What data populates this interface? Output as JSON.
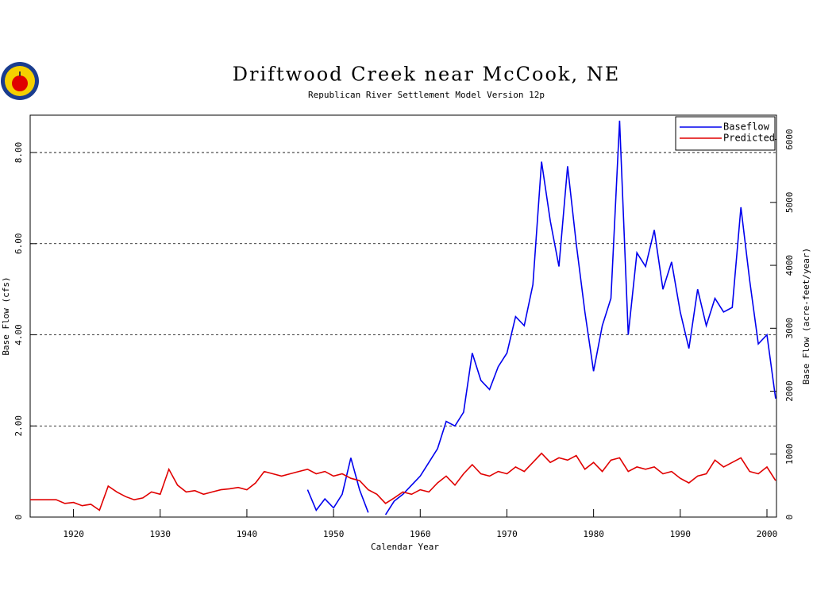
{
  "chart_data": {
    "type": "line",
    "title": "Driftwood Creek near McCook, NE",
    "subtitle": "Republican River Settlement Model Version 12p",
    "x_label": "Calendar Year",
    "y_label": "Base Flow (cfs)",
    "y2_label": "Base Flow (acre-feet/year)",
    "x": [
      1915,
      1916,
      1917,
      1918,
      1919,
      1920,
      1921,
      1922,
      1923,
      1924,
      1925,
      1926,
      1927,
      1928,
      1929,
      1930,
      1931,
      1932,
      1933,
      1934,
      1935,
      1936,
      1937,
      1938,
      1939,
      1940,
      1941,
      1942,
      1943,
      1944,
      1945,
      1946,
      1947,
      1948,
      1949,
      1950,
      1951,
      1952,
      1953,
      1954,
      1955,
      1956,
      1957,
      1958,
      1959,
      1960,
      1961,
      1962,
      1963,
      1964,
      1965,
      1966,
      1967,
      1968,
      1969,
      1970,
      1971,
      1972,
      1973,
      1974,
      1975,
      1976,
      1977,
      1978,
      1979,
      1980,
      1981,
      1982,
      1983,
      1984,
      1985,
      1986,
      1987,
      1988,
      1989,
      1990,
      1991,
      1992,
      1993,
      1994,
      1995,
      1996,
      1997,
      1998,
      1999,
      2000,
      2001
    ],
    "series": [
      {
        "name": "Baseflow",
        "color": "#0000ee",
        "values": [
          null,
          null,
          null,
          null,
          null,
          null,
          null,
          null,
          null,
          null,
          null,
          null,
          null,
          null,
          null,
          null,
          null,
          null,
          null,
          null,
          null,
          null,
          null,
          null,
          null,
          null,
          null,
          null,
          null,
          null,
          null,
          null,
          0.6,
          0.15,
          0.4,
          0.2,
          0.5,
          1.3,
          0.6,
          0.1,
          null,
          0.05,
          0.35,
          0.5,
          0.7,
          0.9,
          1.2,
          1.5,
          2.1,
          2.0,
          2.3,
          3.6,
          3.0,
          2.8,
          3.3,
          3.6,
          4.4,
          4.2,
          5.1,
          7.8,
          6.5,
          5.5,
          7.7,
          6.0,
          4.5,
          3.2,
          4.2,
          4.8,
          8.7,
          4.0,
          5.8,
          5.5,
          6.3,
          5.0,
          5.6,
          4.5,
          3.7,
          5.0,
          4.2,
          4.8,
          4.5,
          4.6,
          6.8,
          5.2,
          3.8,
          4.0,
          2.6
        ]
      },
      {
        "name": "Predicted",
        "color": "#e00000",
        "values": [
          0.38,
          0.38,
          0.38,
          0.38,
          0.3,
          0.32,
          0.25,
          0.28,
          0.15,
          0.68,
          0.55,
          0.45,
          0.38,
          0.42,
          0.55,
          0.5,
          1.05,
          0.7,
          0.55,
          0.58,
          0.5,
          0.55,
          0.6,
          0.62,
          0.65,
          0.6,
          0.75,
          1.0,
          0.95,
          0.9,
          0.95,
          1.0,
          1.05,
          0.95,
          1.0,
          0.9,
          0.95,
          0.85,
          0.8,
          0.6,
          0.5,
          0.3,
          0.42,
          0.55,
          0.5,
          0.6,
          0.55,
          0.75,
          0.9,
          0.7,
          0.95,
          1.15,
          0.95,
          0.9,
          1.0,
          0.95,
          1.1,
          1.0,
          1.2,
          1.4,
          1.2,
          1.3,
          1.25,
          1.35,
          1.05,
          1.2,
          1.0,
          1.25,
          1.3,
          1.0,
          1.1,
          1.05,
          1.1,
          0.95,
          1.0,
          0.85,
          0.75,
          0.9,
          0.95,
          1.25,
          1.1,
          1.2,
          1.3,
          1.0,
          0.95,
          1.1,
          0.8
        ]
      }
    ],
    "xlim": [
      1915,
      2001.1
    ],
    "xticks": [
      1920,
      1930,
      1940,
      1950,
      1960,
      1970,
      1980,
      1990,
      2000
    ],
    "ylim": [
      0,
      8.82
    ],
    "yticks": [
      0,
      {
        "value": 2,
        "label": "2.00"
      },
      {
        "value": 4,
        "label": "4.00"
      },
      {
        "value": 6,
        "label": "6.00"
      },
      {
        "value": 8,
        "label": "8.00"
      }
    ],
    "y2lim": [
      0,
      6386
    ],
    "y2ticks": [
      0,
      1000,
      2000,
      3000,
      4000,
      5000,
      6000
    ],
    "grid": true,
    "legend": "top-right"
  }
}
